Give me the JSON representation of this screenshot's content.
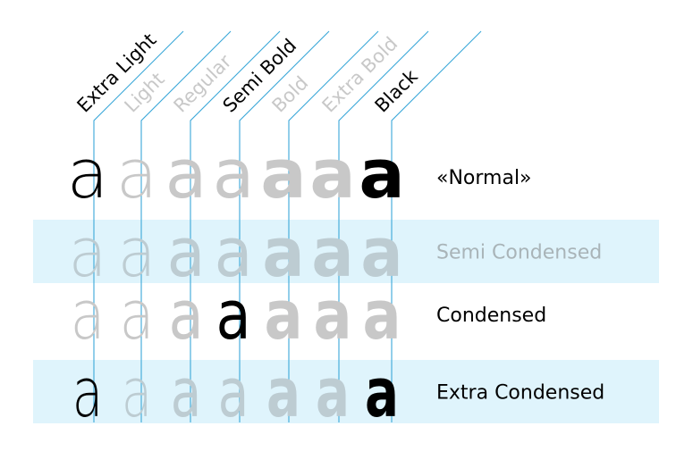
{
  "colors": {
    "band": "#dff4fc",
    "guide": "#3aa7d8",
    "active": "#000000",
    "inactive": "#c8c8c8",
    "inactive_on_band": "#bdccd2",
    "label_muted": "#a9b4b8"
  },
  "weights": [
    {
      "label": "Extra Light",
      "active": true
    },
    {
      "label": "Light",
      "active": false
    },
    {
      "label": "Regular",
      "active": false
    },
    {
      "label": "Semi Bold",
      "active": true
    },
    {
      "label": "Bold",
      "active": false
    },
    {
      "label": "Extra Bold",
      "active": false
    },
    {
      "label": "Black",
      "active": true
    }
  ],
  "rows": [
    {
      "label": "«Normal»",
      "band": false,
      "label_muted": false,
      "glyphs": [
        "a",
        "a",
        "a",
        "a",
        "a",
        "a",
        "a"
      ],
      "active": [
        true,
        false,
        false,
        false,
        false,
        false,
        true
      ]
    },
    {
      "label": "Semi Condensed",
      "band": true,
      "label_muted": true,
      "glyphs": [
        "a",
        "a",
        "a",
        "a",
        "a",
        "a",
        "a"
      ],
      "active": [
        false,
        false,
        false,
        false,
        false,
        false,
        false
      ]
    },
    {
      "label": "Condensed",
      "band": false,
      "label_muted": false,
      "glyphs": [
        "a",
        "a",
        "a",
        "a",
        "a",
        "a",
        "a"
      ],
      "active": [
        false,
        false,
        false,
        true,
        false,
        false,
        false
      ]
    },
    {
      "label": "Extra Condensed",
      "band": true,
      "label_muted": false,
      "glyphs": [
        "a",
        "a",
        "a",
        "a",
        "a",
        "a",
        "a"
      ],
      "active": [
        true,
        false,
        false,
        false,
        false,
        false,
        true
      ]
    }
  ]
}
